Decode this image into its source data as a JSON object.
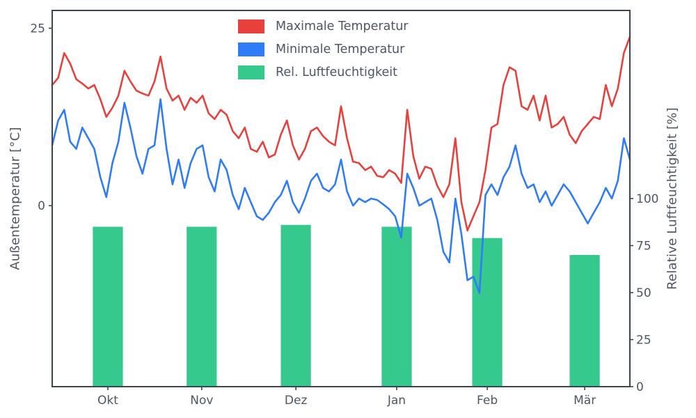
{
  "figure": {
    "background": "#ffffff",
    "spine_color": "#3d4450",
    "text_color": "#4d5663",
    "left_axis_label": "Außentemperatur [°C]",
    "right_axis_label": "Relative Luftfeuchtigkeit [%]"
  },
  "legend": [
    {
      "series": "max-temp",
      "label": "Maximale Temperatur",
      "color": "#e8413d"
    },
    {
      "series": "min-temp",
      "label": "Minimale Temperatur",
      "color": "#2f7cf6"
    },
    {
      "series": "humidity",
      "label": "Rel. Luftfeuchtigkeit",
      "color": "#36c98e"
    }
  ],
  "chart_data": {
    "type": "mixed",
    "x_unit": "days from start of record (approx. mid-September), sampled every 2 days",
    "x": [
      0,
      2,
      4,
      6,
      8,
      10,
      12,
      14,
      16,
      18,
      20,
      22,
      24,
      26,
      28,
      30,
      32,
      34,
      36,
      38,
      40,
      42,
      44,
      46,
      48,
      50,
      52,
      54,
      56,
      58,
      60,
      62,
      64,
      66,
      68,
      70,
      72,
      74,
      76,
      78,
      80,
      82,
      84,
      86,
      88,
      90,
      92,
      94,
      96,
      98,
      100,
      102,
      104,
      106,
      108,
      110,
      112,
      114,
      116,
      118,
      120,
      122,
      124,
      126,
      128,
      130,
      132,
      134,
      136,
      138,
      140,
      142,
      144,
      146,
      148,
      150,
      152,
      154,
      156,
      158,
      160,
      162,
      164,
      166,
      168,
      170,
      172,
      174,
      176,
      178,
      180,
      182,
      184,
      186,
      188,
      190,
      192
    ],
    "x_ticks": [
      {
        "label": "Okt",
        "day": 18.5
      },
      {
        "label": "Nov",
        "day": 49.7
      },
      {
        "label": "Dez",
        "day": 81.0
      },
      {
        "label": "Jan",
        "day": 114.5
      },
      {
        "label": "Feb",
        "day": 144.6
      },
      {
        "label": "Mär",
        "day": 177.0
      }
    ],
    "left_axis": {
      "label": "Außentemperatur [°C]",
      "ticks": [
        0,
        25
      ],
      "lim": [
        -25.5,
        27.5
      ]
    },
    "right_axis": {
      "label": "Relative Luftfeuchtigkeit [%]",
      "ticks": [
        0,
        25,
        50,
        75,
        100
      ],
      "lim": [
        0,
        200
      ]
    },
    "grid": false,
    "legend_position": "upper center (frameless)",
    "series": [
      {
        "id": "max-temp",
        "name": "Maximale Temperatur",
        "type": "line",
        "axis": "left",
        "color": "#e8413d",
        "values": [
          17.0,
          18.0,
          21.5,
          20.0,
          17.8,
          17.2,
          16.5,
          17.0,
          15.0,
          12.5,
          13.8,
          15.5,
          19.0,
          17.5,
          16.2,
          15.8,
          15.5,
          17.5,
          21.0,
          16.5,
          14.8,
          15.5,
          13.5,
          15.2,
          14.5,
          15.5,
          13.0,
          12.2,
          13.5,
          12.8,
          10.5,
          9.5,
          11.0,
          8.0,
          7.6,
          9.0,
          6.8,
          7.2,
          10.0,
          12.0,
          8.5,
          6.5,
          8.0,
          10.5,
          11.0,
          9.8,
          9.0,
          8.5,
          14.0,
          9.5,
          6.2,
          6.0,
          5.0,
          5.5,
          4.2,
          4.0,
          5.0,
          4.5,
          3.2,
          13.5,
          7.0,
          3.8,
          5.5,
          5.2,
          2.8,
          1.2,
          3.0,
          9.5,
          0.5,
          -3.5,
          -1.5,
          0.5,
          5.0,
          11.0,
          11.5,
          17.0,
          19.5,
          19.0,
          14.0,
          13.5,
          15.5,
          12.0,
          15.5,
          11.0,
          11.5,
          12.5,
          10.0,
          8.8,
          10.5,
          11.5,
          12.5,
          12.2,
          17.0,
          14.0,
          16.5,
          21.5,
          23.8
        ]
      },
      {
        "id": "min-temp",
        "name": "Minimale Temperatur",
        "type": "line",
        "axis": "left",
        "color": "#2f7cf6",
        "values": [
          8.5,
          12.0,
          13.5,
          9.0,
          8.0,
          11.0,
          9.5,
          8.0,
          4.0,
          1.2,
          6.0,
          9.0,
          14.5,
          11.0,
          7.0,
          4.5,
          8.0,
          8.5,
          15.0,
          8.0,
          3.0,
          6.5,
          2.5,
          6.0,
          8.0,
          8.5,
          4.0,
          2.0,
          6.5,
          5.0,
          1.5,
          -0.5,
          2.5,
          0.5,
          -1.5,
          -2.0,
          -1.0,
          0.5,
          1.5,
          3.5,
          0.5,
          -1.0,
          1.0,
          3.5,
          4.5,
          2.5,
          2.0,
          3.0,
          6.5,
          2.0,
          0.0,
          1.0,
          0.5,
          1.0,
          0.8,
          0.2,
          -0.5,
          -1.5,
          -4.5,
          4.5,
          2.5,
          0.0,
          0.5,
          1.0,
          -2.0,
          -6.5,
          -8.0,
          1.0,
          -4.0,
          -10.5,
          -10.0,
          -12.3,
          1.5,
          3.0,
          1.5,
          4.0,
          5.5,
          8.5,
          4.5,
          2.5,
          3.0,
          0.5,
          2.0,
          0.0,
          1.5,
          3.0,
          2.0,
          0.5,
          -1.0,
          -2.5,
          -1.0,
          0.5,
          2.5,
          1.0,
          3.5,
          9.5,
          6.5
        ]
      },
      {
        "id": "humidity",
        "name": "Rel. Luftfeuchtigkeit",
        "type": "bar",
        "axis": "right",
        "color": "#36c98e",
        "categories": [
          "Okt",
          "Nov",
          "Dez",
          "Jan",
          "Feb",
          "Mär"
        ],
        "centers_day": [
          18.5,
          49.7,
          81.0,
          114.5,
          144.6,
          177.0
        ],
        "bar_width_days": 10,
        "values": [
          85,
          85,
          86,
          85,
          79,
          70
        ]
      }
    ]
  }
}
